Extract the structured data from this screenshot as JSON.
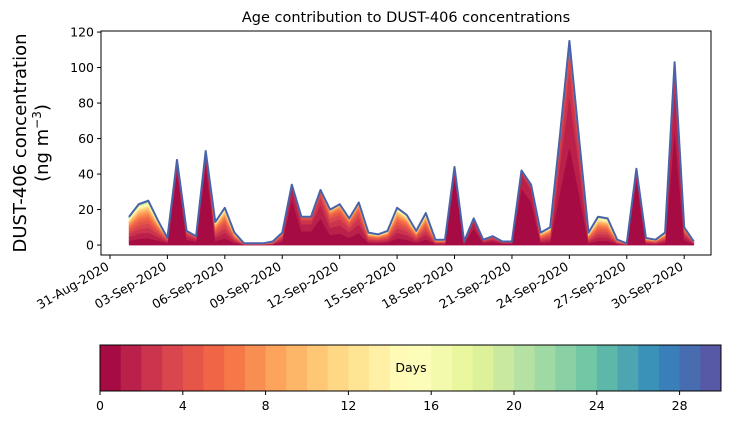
{
  "chart_data": {
    "type": "area",
    "stacked": true,
    "title": "Age contribution to DUST-406 concentrations",
    "ylabel_line1": "DUST-406 concentration",
    "ylabel_line2": "(ng m",
    "ylabel_sup": "−3",
    "ylabel_close": ")",
    "xlabel": "",
    "ylim": [
      -5.6,
      120.6
    ],
    "yticks": [
      0,
      20,
      40,
      60,
      80,
      100,
      120
    ],
    "x_unit": "days since 31-Aug-2020",
    "xlim": [
      -0.47,
      31.4
    ],
    "xticks": [
      {
        "day": 0,
        "label": "31-Aug-2020"
      },
      {
        "day": 3,
        "label": "03-Sep-2020"
      },
      {
        "day": 6,
        "label": "06-Sep-2020"
      },
      {
        "day": 9,
        "label": "09-Sep-2020"
      },
      {
        "day": 12,
        "label": "12-Sep-2020"
      },
      {
        "day": 15,
        "label": "15-Sep-2020"
      },
      {
        "day": 18,
        "label": "18-Sep-2020"
      },
      {
        "day": 21,
        "label": "21-Sep-2020"
      },
      {
        "day": 24,
        "label": "24-Sep-2020"
      },
      {
        "day": 27,
        "label": "27-Sep-2020"
      },
      {
        "day": 30,
        "label": "30-Sep-2020"
      }
    ],
    "time_step_days": 0.5,
    "start_day": 1,
    "total": [
      16,
      23,
      25,
      14,
      4,
      48,
      8,
      5,
      53,
      13,
      21,
      7,
      1,
      1,
      1,
      2,
      7,
      34,
      16,
      16,
      31,
      20,
      23,
      15,
      24,
      7,
      6,
      8,
      21,
      17,
      8,
      18,
      3,
      3,
      44,
      2,
      15,
      3,
      5,
      2,
      2,
      42,
      34,
      7,
      10,
      61,
      115,
      61,
      7,
      16,
      15,
      3,
      1,
      43,
      4,
      3,
      7,
      103,
      10,
      2
    ],
    "mean_age_days": [
      6,
      6,
      6,
      5,
      3,
      0.5,
      2,
      2,
      0.5,
      5,
      5,
      5,
      5,
      5,
      5,
      5,
      3,
      0.7,
      1.5,
      1.5,
      1.5,
      3,
      3,
      3,
      3,
      5,
      5,
      5,
      5,
      5,
      5,
      5,
      5,
      5,
      0.5,
      2,
      1,
      2,
      2,
      2,
      2,
      0.7,
      0.8,
      5,
      5,
      1.5,
      1.5,
      1.5,
      6,
      6,
      6,
      5,
      5,
      0.5,
      5,
      5,
      5,
      1,
      3,
      3
    ],
    "age_bins": 30,
    "colorbar": {
      "label": "Days",
      "ticks": [
        0,
        4,
        8,
        12,
        16,
        20,
        24,
        28
      ],
      "range": [
        0,
        30
      ],
      "colormap": "Spectral",
      "stops": [
        "#9e0142",
        "#d53e4f",
        "#f46d43",
        "#fdae61",
        "#fee08b",
        "#ffffbf",
        "#e6f598",
        "#abdda4",
        "#66c2a5",
        "#3288bd",
        "#5e4fa2"
      ]
    },
    "outline_color": "#4a62a8"
  }
}
